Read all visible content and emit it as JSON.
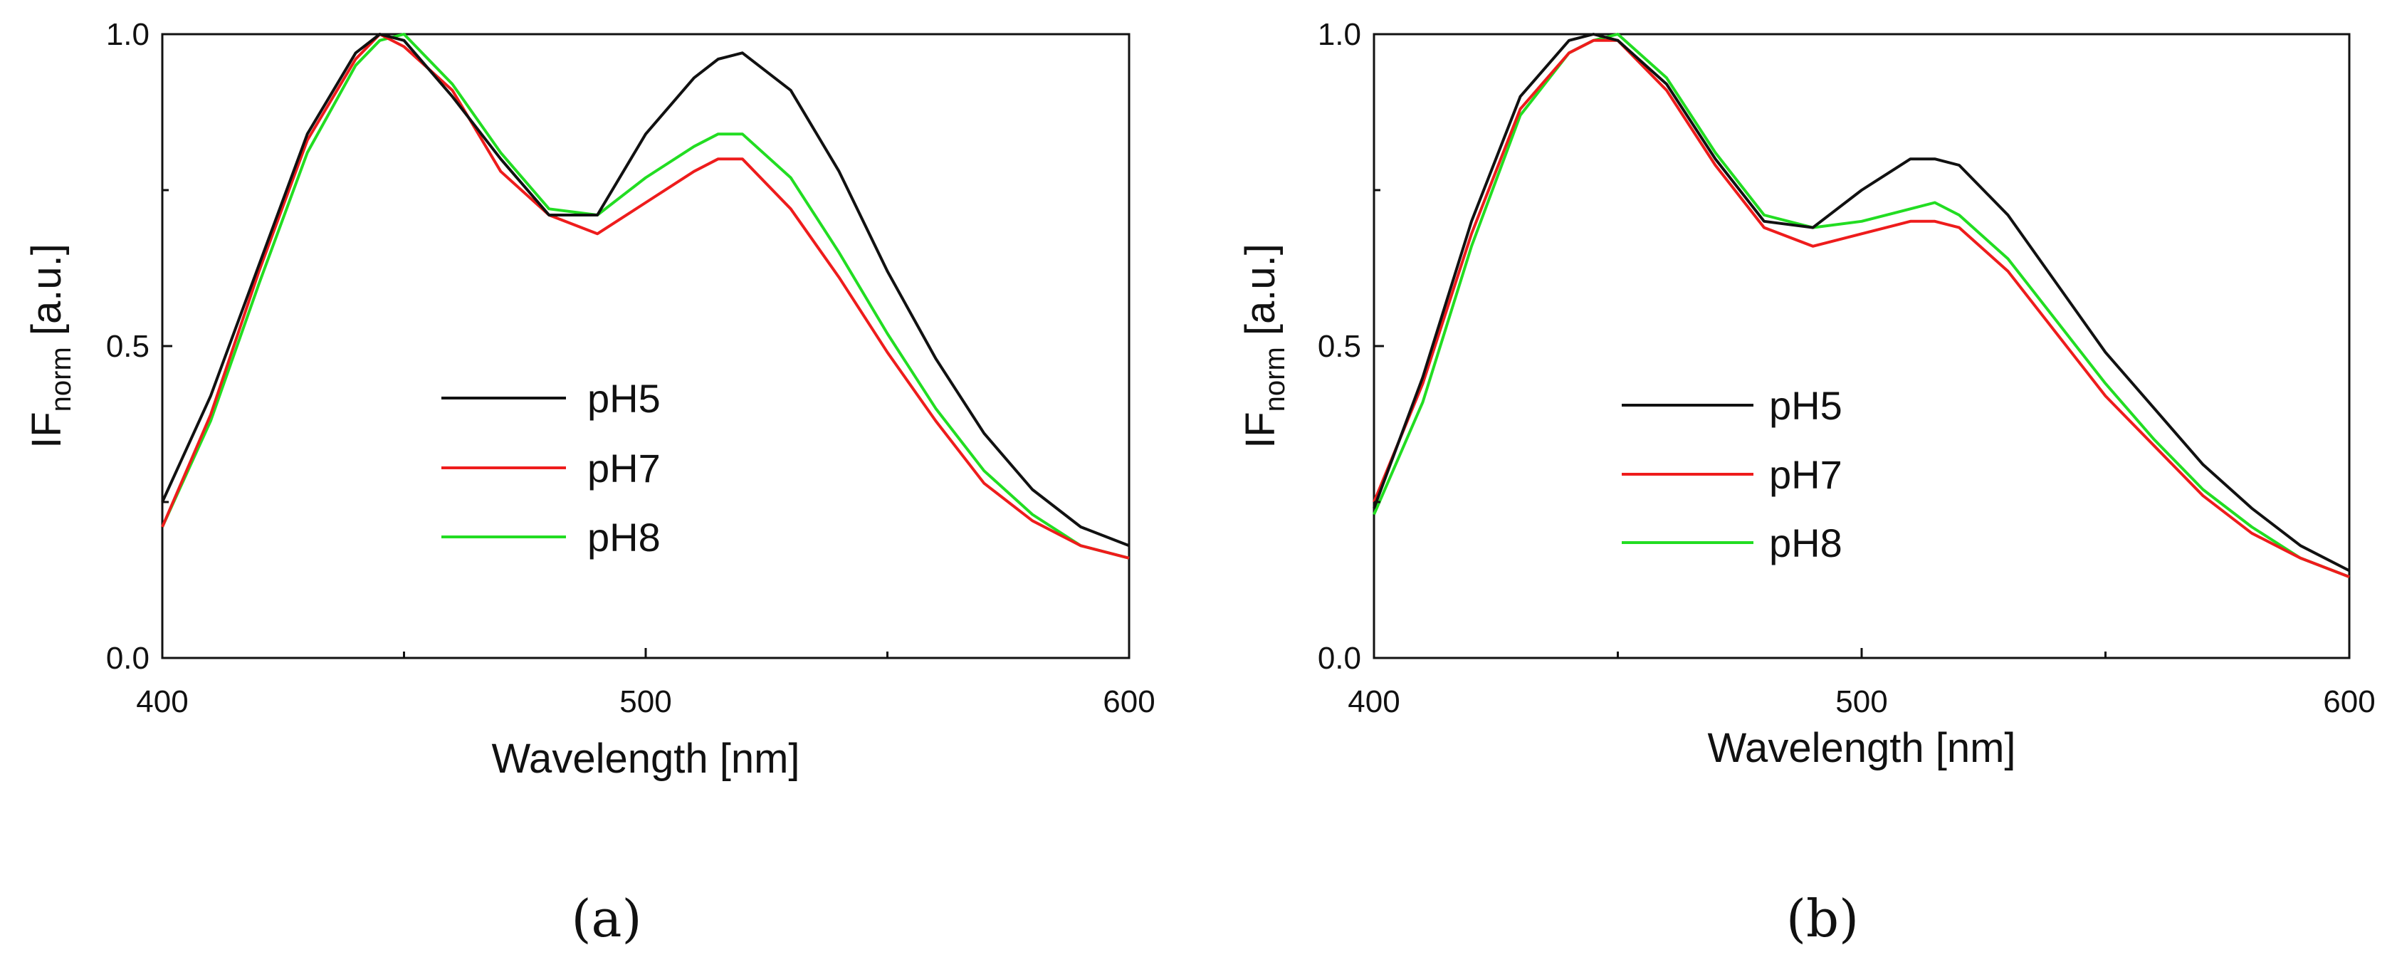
{
  "chart_data": [
    {
      "type": "line",
      "panel_label": "(a)",
      "xlabel": "Wavelength [nm]",
      "ylabel_main": "IF",
      "ylabel_sub": "norm",
      "ylabel_unit": " [a.u.]",
      "xlim": [
        400,
        600
      ],
      "ylim": [
        0.0,
        1.0
      ],
      "xticks": [
        "400",
        "500",
        "600"
      ],
      "yticks": [
        "0.0",
        "0.5",
        "1.0"
      ],
      "legend": [
        "pH5",
        "pH7",
        "pH8"
      ],
      "x": [
        400,
        410,
        420,
        430,
        440,
        445,
        450,
        460,
        470,
        480,
        490,
        500,
        510,
        515,
        520,
        530,
        540,
        550,
        560,
        570,
        580,
        590,
        600
      ],
      "series": [
        {
          "name": "pH5",
          "color": "#111111",
          "values": [
            0.25,
            0.42,
            0.63,
            0.84,
            0.97,
            1.0,
            0.99,
            0.9,
            0.8,
            0.71,
            0.71,
            0.84,
            0.93,
            0.96,
            0.97,
            0.91,
            0.78,
            0.62,
            0.48,
            0.36,
            0.27,
            0.21,
            0.18
          ]
        },
        {
          "name": "pH7",
          "color": "#ee1c1c",
          "values": [
            0.21,
            0.39,
            0.62,
            0.83,
            0.96,
            1.0,
            0.98,
            0.91,
            0.78,
            0.71,
            0.68,
            0.73,
            0.78,
            0.8,
            0.8,
            0.72,
            0.61,
            0.49,
            0.38,
            0.28,
            0.22,
            0.18,
            0.16
          ]
        },
        {
          "name": "pH8",
          "color": "#22dd22",
          "values": [
            0.21,
            0.38,
            0.6,
            0.81,
            0.95,
            0.99,
            1.0,
            0.92,
            0.81,
            0.72,
            0.71,
            0.77,
            0.82,
            0.84,
            0.84,
            0.77,
            0.65,
            0.52,
            0.4,
            0.3,
            0.23,
            0.18,
            0.16
          ]
        }
      ]
    },
    {
      "type": "line",
      "panel_label": "(b)",
      "xlabel": "Wavelength [nm]",
      "ylabel_main": "IF",
      "ylabel_sub": "norm",
      "ylabel_unit": " [a.u.]",
      "xlim": [
        400,
        600
      ],
      "ylim": [
        0.0,
        1.0
      ],
      "xticks": [
        "400",
        "500",
        "600"
      ],
      "yticks": [
        "0.0",
        "0.5",
        "1.0"
      ],
      "legend": [
        "pH5",
        "pH7",
        "pH8"
      ],
      "x": [
        400,
        410,
        420,
        430,
        440,
        445,
        450,
        460,
        470,
        480,
        490,
        500,
        510,
        515,
        520,
        530,
        540,
        550,
        560,
        570,
        580,
        590,
        600
      ],
      "series": [
        {
          "name": "pH5",
          "color": "#111111",
          "values": [
            0.24,
            0.45,
            0.7,
            0.9,
            0.99,
            1.0,
            0.99,
            0.92,
            0.8,
            0.7,
            0.69,
            0.75,
            0.8,
            0.8,
            0.79,
            0.71,
            0.6,
            0.49,
            0.4,
            0.31,
            0.24,
            0.18,
            0.14
          ]
        },
        {
          "name": "pH7",
          "color": "#ee1c1c",
          "values": [
            0.25,
            0.44,
            0.68,
            0.88,
            0.97,
            0.99,
            0.99,
            0.91,
            0.79,
            0.69,
            0.66,
            0.68,
            0.7,
            0.7,
            0.69,
            0.62,
            0.52,
            0.42,
            0.34,
            0.26,
            0.2,
            0.16,
            0.13
          ]
        },
        {
          "name": "pH8",
          "color": "#22dd22",
          "values": [
            0.23,
            0.41,
            0.66,
            0.87,
            0.97,
            0.99,
            1.0,
            0.93,
            0.81,
            0.71,
            0.69,
            0.7,
            0.72,
            0.73,
            0.71,
            0.64,
            0.54,
            0.44,
            0.35,
            0.27,
            0.21,
            0.16,
            0.13
          ]
        }
      ]
    }
  ]
}
